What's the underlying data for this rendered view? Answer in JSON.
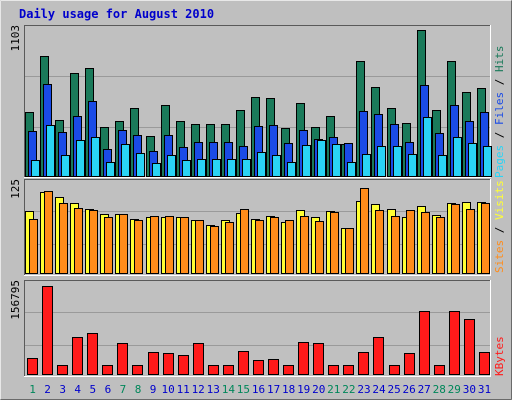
{
  "chart_data": [
    {
      "type": "bar",
      "title": "Daily usage for August 2010",
      "panel": "pages-files-hits",
      "ymax_label": "1103",
      "ylim": [
        0,
        1103
      ],
      "categories": [
        "1",
        "2",
        "3",
        "4",
        "5",
        "6",
        "7",
        "8",
        "9",
        "10",
        "11",
        "12",
        "13",
        "14",
        "15",
        "16",
        "17",
        "18",
        "19",
        "20",
        "21",
        "22",
        "23",
        "24",
        "25",
        "26",
        "27",
        "28",
        "29",
        "30",
        "31"
      ],
      "weekend_days": [
        "1",
        "7",
        "8",
        "14",
        "15",
        "21",
        "22",
        "28",
        "29"
      ],
      "legend": [
        "Pages",
        "Files",
        "Hits"
      ],
      "series": [
        {
          "name": "Hits",
          "color": "#1a7a5a",
          "values": [
            480,
            893,
            418,
            765,
            800,
            368,
            411,
            504,
            303,
            527,
            411,
            389,
            389,
            389,
            496,
            589,
            582,
            362,
            546,
            370,
            450,
            246,
            853,
            664,
            507,
            397,
            1080,
            495,
            851,
            625,
            651
          ]
        },
        {
          "name": "Files",
          "color": "#1a4be6",
          "values": [
            340,
            681,
            328,
            445,
            559,
            203,
            348,
            308,
            188,
            308,
            224,
            255,
            255,
            255,
            228,
            373,
            383,
            247,
            346,
            279,
            295,
            247,
            485,
            466,
            392,
            260,
            680,
            320,
            530,
            413,
            478
          ]
        },
        {
          "name": "Pages",
          "color": "#2ad4f5",
          "values": [
            126,
            386,
            159,
            272,
            294,
            112,
            246,
            177,
            101,
            164,
            122,
            129,
            129,
            129,
            129,
            184,
            164,
            112,
            232,
            275,
            246,
            112,
            172,
            225,
            229,
            172,
            442,
            164,
            294,
            247,
            229
          ]
        }
      ]
    },
    {
      "type": "bar",
      "panel": "sites-visits",
      "ymax_label": "125",
      "ylim": [
        0,
        125
      ],
      "legend": [
        "Sites",
        "Visits"
      ],
      "series": [
        {
          "name": "Visits",
          "color": "#ffff33",
          "values": [
            85,
            110,
            104,
            96,
            88,
            80,
            81,
            74,
            77,
            76,
            77,
            73,
            66,
            72,
            82,
            74,
            78,
            70,
            86,
            76,
            85,
            62,
            98,
            94,
            88,
            76,
            92,
            79,
            96,
            97,
            97
          ]
        },
        {
          "name": "Sites",
          "color": "#ff8c1a",
          "values": [
            74,
            112,
            96,
            89,
            86,
            77,
            80,
            72,
            78,
            78,
            77,
            72,
            65,
            70,
            88,
            72,
            77,
            72,
            78,
            71,
            84,
            62,
            116,
            86,
            78,
            86,
            84,
            76,
            94,
            88,
            96
          ]
        }
      ]
    },
    {
      "type": "bar",
      "panel": "kbytes",
      "ymax_label": "156795",
      "ylim": [
        0,
        156795
      ],
      "legend": [
        "KBytes"
      ],
      "series": [
        {
          "name": "KBytes",
          "color": "#ff1a1a",
          "values": [
            28800,
            151000,
            17500,
            64000,
            71000,
            16500,
            54000,
            17500,
            39000,
            37000,
            34000,
            54000,
            17500,
            17500,
            41000,
            26000,
            27000,
            17500,
            56000,
            55000,
            17500,
            16500,
            40000,
            64000,
            17500,
            37000,
            109000,
            17500,
            109000,
            95000,
            40000
          ]
        }
      ]
    }
  ],
  "colors": {
    "page_bg": "#bfbfbf",
    "plot_bg": "#c0c0c0",
    "grid": "#9a9a9a",
    "title": "#0000cc",
    "weekday_label": "#0000cc",
    "weekend_label": "#00875a",
    "axis_text": "#000000",
    "legend_pages": "#2ad4f5",
    "legend_files": "#1a4be6",
    "legend_hits": "#1a7a5a",
    "legend_sites": "#ff8c1a",
    "legend_visits": "#ffff33",
    "legend_kbytes": "#ff1a1a",
    "legend_slash": "#000000"
  }
}
